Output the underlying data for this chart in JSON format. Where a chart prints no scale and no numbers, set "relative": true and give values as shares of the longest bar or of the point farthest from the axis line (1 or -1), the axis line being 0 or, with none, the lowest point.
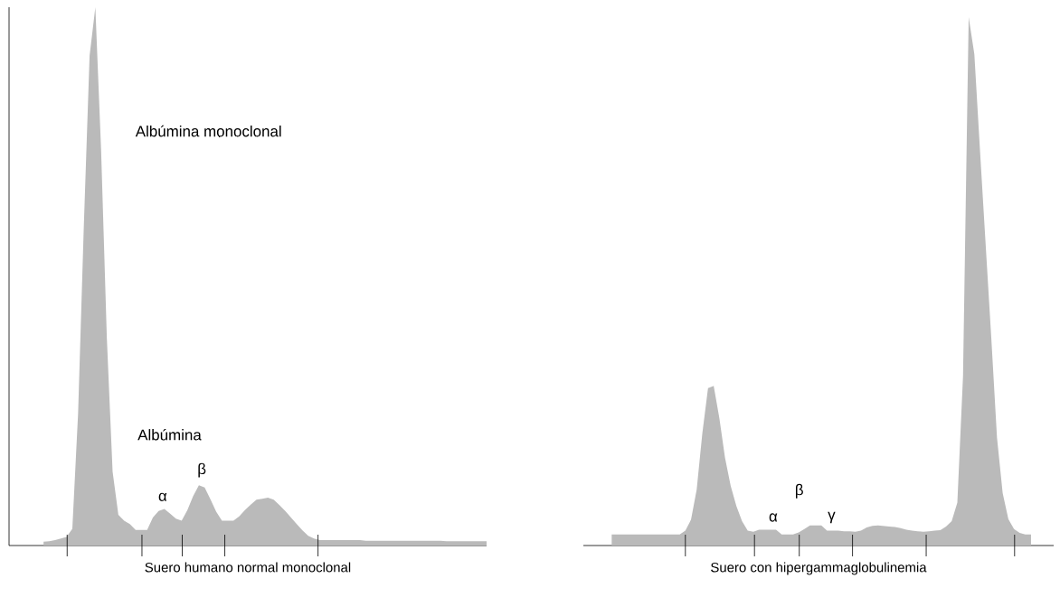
{
  "chart_data": [
    {
      "type": "area",
      "relative": true,
      "xlabel": "Suero humano normal monoclonal",
      "categories": [
        null,
        null,
        null,
        null,
        null,
        null,
        null,
        null,
        null,
        null,
        null,
        null,
        null,
        null,
        null,
        null,
        null,
        null,
        null,
        null,
        null,
        null,
        null,
        null,
        null,
        null,
        null,
        null,
        null,
        null,
        null,
        null,
        null,
        null,
        null,
        null,
        null,
        null,
        null,
        null,
        null,
        null,
        null,
        null,
        null,
        null,
        null,
        null,
        null,
        null,
        null,
        null,
        null,
        null,
        null,
        null,
        null,
        null,
        null,
        null,
        null,
        null,
        null,
        null,
        null,
        null,
        null,
        null,
        null,
        null,
        null,
        null,
        null,
        null,
        null,
        null,
        null,
        null,
        null,
        null,
        null,
        null,
        null,
        null
      ],
      "annotations": [
        "Albúmina monoclonal",
        "Albúmina",
        "α",
        "β"
      ],
      "series": [
        {
          "color": "#bababa",
          "values": [
            null,
            null,
            null,
            null,
            null,
            null,
            0.007,
            0.008,
            0.01,
            0.013,
            0.016,
            0.031,
            0.245,
            0.595,
            0.91,
            1.0,
            0.735,
            0.385,
            0.137,
            0.057,
            0.046,
            0.04,
            0.029,
            0.029,
            0.029,
            0.052,
            0.064,
            0.068,
            0.059,
            0.05,
            0.046,
            0.066,
            0.092,
            0.112,
            0.108,
            0.086,
            0.063,
            0.046,
            0.046,
            0.046,
            0.054,
            0.066,
            0.076,
            0.085,
            0.087,
            0.089,
            0.085,
            0.075,
            0.064,
            0.052,
            0.04,
            0.028,
            0.018,
            0.013,
            0.01,
            0.01,
            0.01,
            0.01,
            0.01,
            0.01,
            0.01,
            0.01,
            0.009,
            0.009,
            0.009,
            0.009,
            0.009,
            0.009,
            0.009,
            0.009,
            0.009,
            0.009,
            0.009,
            0.009,
            0.009,
            0.009,
            0.008,
            0.008,
            0.008,
            0.008,
            0.008,
            0.008,
            0.008,
            0.008
          ]
        }
      ]
    },
    {
      "type": "area",
      "relative": true,
      "xlabel": "Suero con hipergammaglobulinemia",
      "categories": [
        null,
        null,
        null,
        null,
        null,
        null,
        null,
        null,
        null,
        null,
        null,
        null,
        null,
        null,
        null,
        null,
        null,
        null,
        null,
        null,
        null,
        null,
        null,
        null,
        null,
        null,
        null,
        null,
        null,
        null,
        null,
        null,
        null,
        null,
        null,
        null,
        null,
        null,
        null,
        null,
        null,
        null,
        null,
        null,
        null,
        null,
        null,
        null,
        null,
        null,
        null,
        null,
        null,
        null,
        null,
        null,
        null,
        null,
        null,
        null,
        null,
        null,
        null,
        null,
        null,
        null,
        null,
        null,
        null,
        null,
        null,
        null,
        null,
        null,
        null,
        null,
        null,
        null,
        null,
        null,
        null,
        null,
        null,
        null
      ],
      "annotations": [
        "α",
        "β",
        "γ"
      ],
      "series": [
        {
          "color": "#bababa",
          "values": [
            null,
            null,
            null,
            null,
            null,
            0.021,
            0.021,
            0.021,
            0.021,
            0.021,
            0.021,
            0.021,
            0.021,
            0.021,
            0.021,
            0.021,
            0.021,
            0.021,
            0.028,
            0.049,
            0.106,
            0.213,
            0.298,
            0.302,
            0.241,
            0.166,
            0.113,
            0.075,
            0.046,
            0.028,
            0.026,
            0.03,
            0.03,
            0.03,
            0.03,
            0.021,
            0.021,
            0.021,
            0.025,
            0.031,
            0.038,
            0.038,
            0.038,
            0.028,
            0.028,
            0.028,
            0.027,
            0.027,
            0.026,
            0.028,
            0.034,
            0.037,
            0.038,
            0.037,
            0.036,
            0.035,
            0.033,
            0.03,
            0.028,
            0.027,
            0.026,
            0.027,
            0.028,
            0.029,
            0.036,
            0.046,
            0.081,
            0.32,
            1.0,
            0.93,
            0.747,
            0.569,
            0.391,
            0.204,
            0.099,
            0.05,
            0.031,
            0.024,
            0.021,
            0.021,
            null,
            null,
            null,
            null
          ]
        }
      ]
    }
  ]
}
